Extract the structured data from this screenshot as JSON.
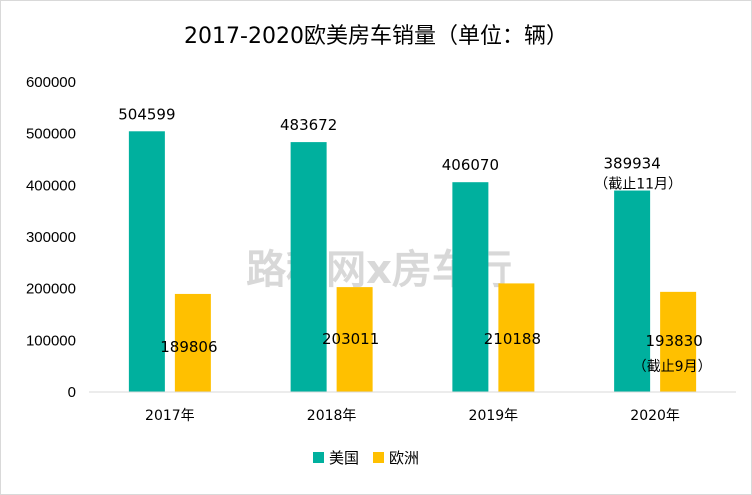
{
  "chart_data": {
    "type": "bar",
    "title": "2017-2020欧美房车销量（单位：辆）",
    "categories": [
      "2017年",
      "2018年",
      "2019年",
      "2020年"
    ],
    "series": [
      {
        "name": "美国",
        "color": "#00B09E",
        "values": [
          504599,
          483672,
          406070,
          389934
        ]
      },
      {
        "name": "欧洲",
        "color": "#FFC000",
        "values": [
          189806,
          203011,
          210188,
          193830
        ]
      }
    ],
    "data_labels": [
      [
        "504599",
        "483672",
        "406070",
        "389934"
      ],
      [
        "189806",
        "203011",
        "210188",
        "193830"
      ]
    ],
    "annotations": [
      {
        "series": 0,
        "category": 3,
        "text": "（截止11月）"
      },
      {
        "series": 1,
        "category": 3,
        "text": "（截止9月）"
      }
    ],
    "y_ticks": [
      "0",
      "100000",
      "200000",
      "300000",
      "400000",
      "500000",
      "600000"
    ],
    "ylim": [
      0,
      600000
    ],
    "grid": false,
    "legend_position": "bottom",
    "watermark": "路程网x房车行"
  }
}
